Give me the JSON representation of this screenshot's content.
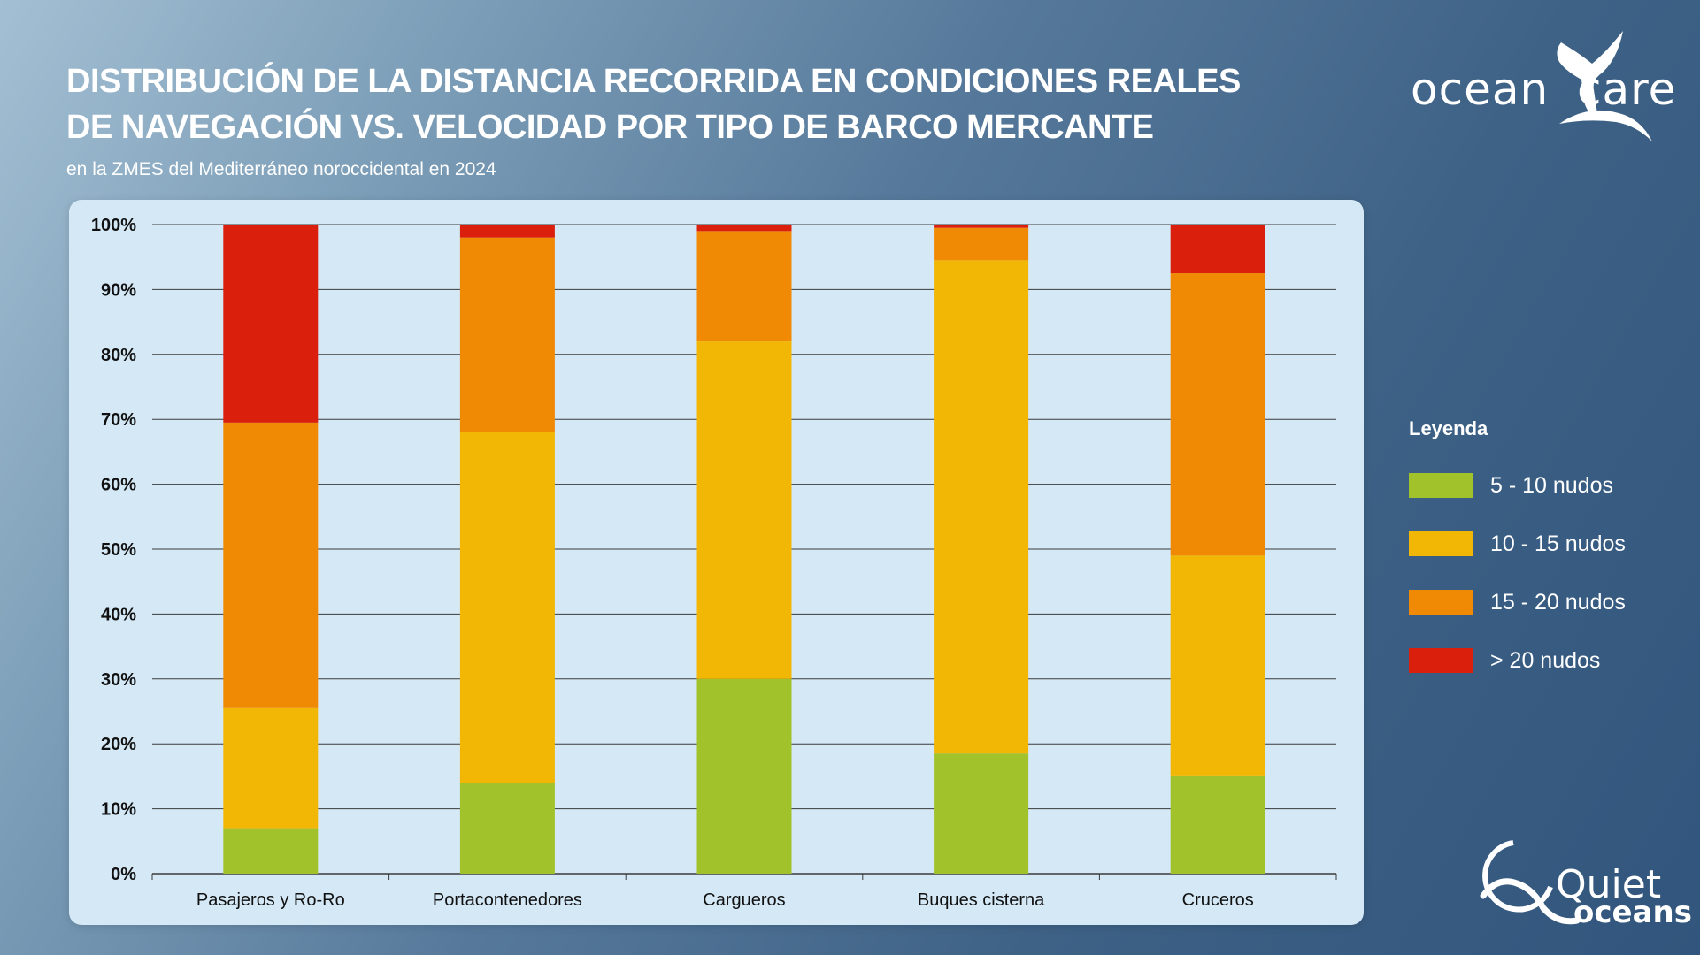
{
  "header": {
    "title_line1": "DISTRIBUCIÓN DE LA DISTANCIA RECORRIDA EN CONDICIONES REALES",
    "title_line2": "DE NAVEGACIÓN VS. VELOCIDAD POR TIPO DE BARCO MERCANTE",
    "subtitle": "en la ZMES del Mediterráneo noroccidental en 2024"
  },
  "logos": {
    "oceancare_left": "ocean",
    "oceancare_right": "care",
    "quiet": "Quiet",
    "oceans": "oceans"
  },
  "legend": {
    "title": "Leyenda"
  },
  "colors": {
    "panel_background": "#d4e8f6",
    "series_5_10": "#a2c22c",
    "series_10_15": "#f2b705",
    "series_15_20": "#f08a04",
    "series_gt20": "#db1f0d"
  },
  "chart_data": {
    "type": "bar",
    "stacked": true,
    "categories": [
      "Pasajeros y Ro-Ro",
      "Portacontenedores",
      "Cargueros",
      "Buques cisterna",
      "Cruceros"
    ],
    "series": [
      {
        "name": "5 - 10 nudos",
        "color": "#a2c22c",
        "values": [
          7,
          14,
          30,
          18.5,
          15
        ]
      },
      {
        "name": "10 - 15 nudos",
        "color": "#f2b705",
        "values": [
          18.5,
          54,
          52,
          76,
          34
        ]
      },
      {
        "name": "15 - 20 nudos",
        "color": "#f08a04",
        "values": [
          44,
          30,
          17,
          5,
          43.5
        ]
      },
      {
        "name": "> 20 nudos",
        "color": "#db1f0d",
        "values": [
          30.5,
          2,
          1,
          0.5,
          7.5
        ]
      }
    ],
    "yticks": [
      "0%",
      "10%",
      "20%",
      "30%",
      "40%",
      "50%",
      "60%",
      "70%",
      "80%",
      "90%",
      "100%"
    ],
    "ylim": [
      0,
      100
    ],
    "xlabel": "",
    "ylabel": "",
    "grid": true,
    "legend_position": "right"
  }
}
